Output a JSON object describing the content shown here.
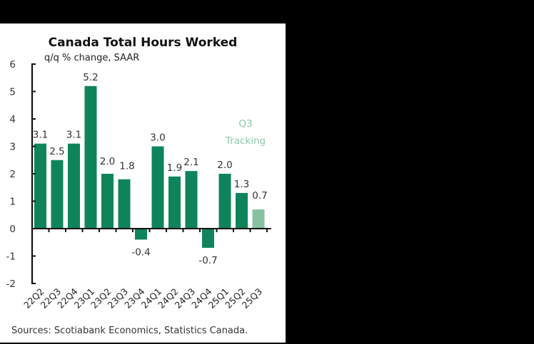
{
  "chart_data": {
    "type": "bar",
    "title": "Canada Total Hours Worked",
    "subtitle": "q/q % change, SAAR",
    "xlabel": "",
    "ylabel": "",
    "ylim": [
      -2,
      6
    ],
    "yticks": [
      6,
      5,
      4,
      3,
      2,
      1,
      0,
      -1,
      -2
    ],
    "grid": false,
    "categories": [
      "22Q2",
      "22Q3",
      "22Q4",
      "23Q1",
      "23Q2",
      "23Q3",
      "23Q4",
      "24Q1",
      "24Q2",
      "24Q3",
      "24Q4",
      "25Q1",
      "25Q2",
      "25Q3"
    ],
    "values": [
      3.1,
      2.5,
      3.1,
      5.2,
      2.0,
      1.8,
      -0.4,
      3.0,
      1.9,
      2.1,
      -0.7,
      2.0,
      1.3,
      0.7
    ],
    "value_labels": [
      "3.1",
      "2.5",
      "3.1",
      "5.2",
      "2.0",
      "1.8",
      "-0.4",
      "3.0",
      "1.9",
      "2.1",
      "-0.7",
      "2.0",
      "1.3",
      "0.7"
    ],
    "annotation": {
      "line1": "Q3",
      "line2": "Tracking",
      "target": "25Q3"
    },
    "source": "Sources: Scotiabank Economics, Statistics Canada.",
    "colors": {
      "bar": "#0f845a",
      "tracking_bar": "#86c2a0",
      "tracking_text": "#8cc9a8",
      "axis": "#111111"
    }
  }
}
